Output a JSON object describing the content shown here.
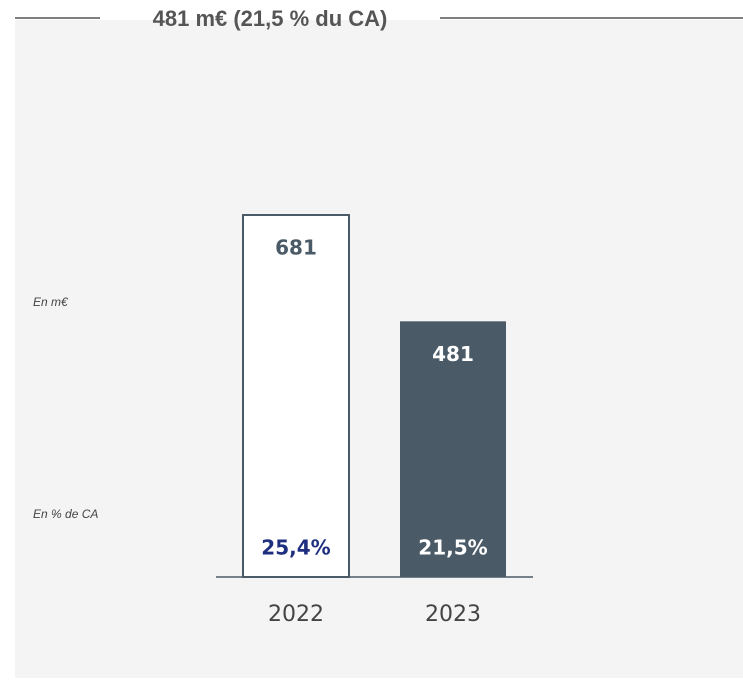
{
  "chart_data": {
    "type": "bar",
    "title": "481 m€ (21,5 % du CA)",
    "unit_label": "En m€",
    "share_label": "En % de CA",
    "categories": [
      "2022",
      "2023"
    ],
    "values": [
      681,
      481
    ],
    "colors": [
      "#ffffff",
      "#4a5a66"
    ],
    "outline_color": "#4a5a66",
    "share_of_revenue": {
      "values": [
        25.4,
        21.5
      ],
      "value_labels": [
        "25,4%",
        "21,5%"
      ]
    }
  }
}
